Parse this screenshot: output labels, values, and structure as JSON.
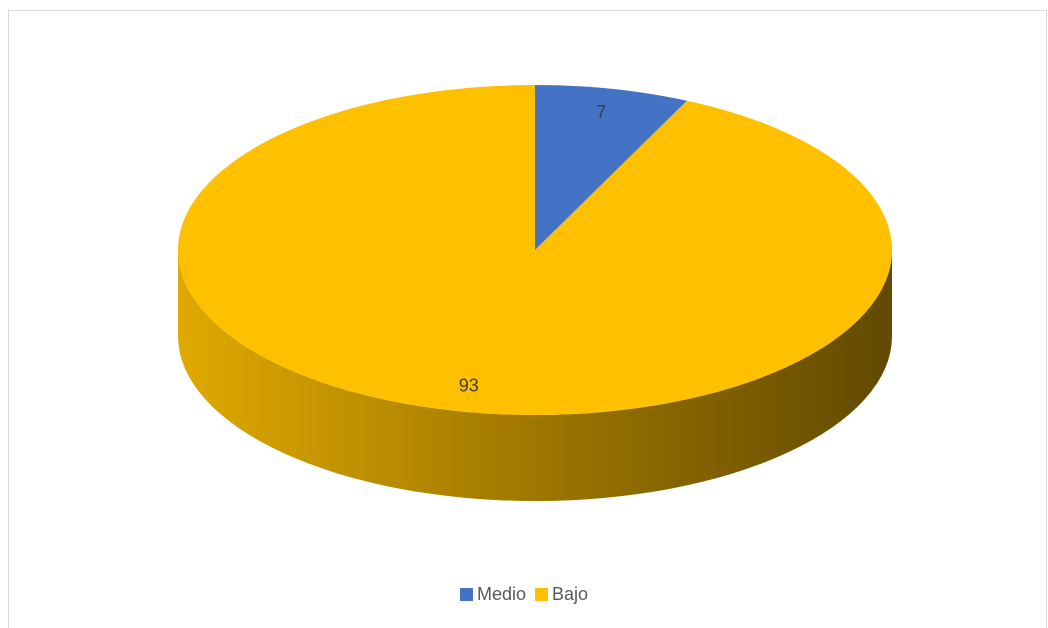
{
  "chart_data": {
    "type": "pie3d",
    "categories": [
      "Medio",
      "Bajo"
    ],
    "values": [
      7,
      93
    ],
    "colors": [
      "#4472c4",
      "#ffc000"
    ],
    "legend": "bottom",
    "data_labels": true
  }
}
